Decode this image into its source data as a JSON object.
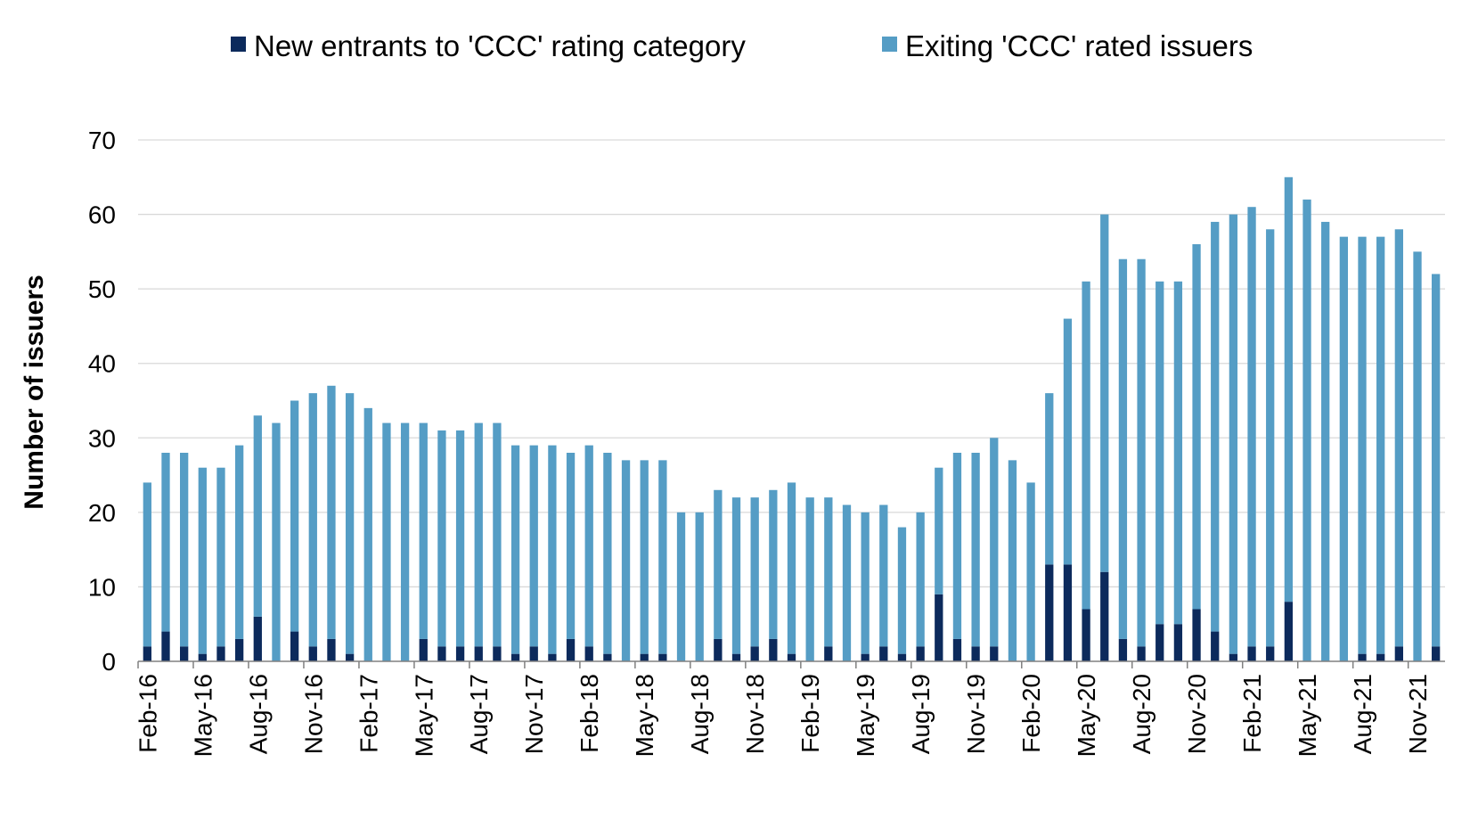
{
  "chart_data": {
    "type": "bar",
    "stacked": true,
    "title": "",
    "xlabel": "",
    "ylabel": "Number of issuers",
    "ylim": [
      0,
      70
    ],
    "yticks": [
      0,
      10,
      20,
      30,
      40,
      50,
      60,
      70
    ],
    "grid": "horizontal",
    "legend_position": "top",
    "categories": [
      "Feb-16",
      "Mar-16",
      "Apr-16",
      "May-16",
      "Jun-16",
      "Jul-16",
      "Aug-16",
      "Sep-16",
      "Oct-16",
      "Nov-16",
      "Dec-16",
      "Jan-17",
      "Feb-17",
      "Mar-17",
      "Apr-17",
      "May-17",
      "Jun-17",
      "Jul-17",
      "Aug-17",
      "Sep-17",
      "Oct-17",
      "Nov-17",
      "Dec-17",
      "Jan-18",
      "Feb-18",
      "Mar-18",
      "Apr-18",
      "May-18",
      "Jun-18",
      "Jul-18",
      "Aug-18",
      "Sep-18",
      "Oct-18",
      "Nov-18",
      "Dec-18",
      "Jan-19",
      "Feb-19",
      "Mar-19",
      "Apr-19",
      "May-19",
      "Jun-19",
      "Jul-19",
      "Aug-19",
      "Sep-19",
      "Oct-19",
      "Nov-19",
      "Dec-19",
      "Jan-20",
      "Feb-20",
      "Mar-20",
      "Apr-20",
      "May-20",
      "Jun-20",
      "Jul-20",
      "Aug-20",
      "Sep-20",
      "Oct-20",
      "Nov-20",
      "Dec-20",
      "Jan-21",
      "Feb-21",
      "Mar-21",
      "Apr-21",
      "May-21",
      "Jun-21",
      "Jul-21",
      "Aug-21",
      "Sep-21",
      "Oct-21",
      "Nov-21",
      "Dec-21"
    ],
    "tick_labels": [
      "Feb-16",
      "May-16",
      "Aug-16",
      "Nov-16",
      "Feb-17",
      "May-17",
      "Aug-17",
      "Nov-17",
      "Feb-18",
      "May-18",
      "Aug-18",
      "Nov-18",
      "Feb-19",
      "May-19",
      "Aug-19",
      "Nov-19",
      "Feb-20",
      "May-20",
      "Aug-20",
      "Nov-20",
      "Feb-21",
      "May-21",
      "Aug-21",
      "Nov-21"
    ],
    "series": [
      {
        "name": "New entrants to 'CCC' rating category",
        "color": "#0c2a5c",
        "values": [
          2,
          4,
          2,
          1,
          2,
          3,
          6,
          0,
          4,
          2,
          3,
          1,
          0,
          0,
          0,
          3,
          2,
          2,
          2,
          2,
          1,
          2,
          1,
          3,
          2,
          1,
          0,
          1,
          1,
          0,
          0,
          3,
          1,
          2,
          3,
          1,
          0,
          2,
          0,
          1,
          2,
          1,
          2,
          9,
          3,
          2,
          2,
          0,
          0,
          13,
          13,
          7,
          12,
          3,
          2,
          5,
          5,
          7,
          4,
          1,
          2,
          2,
          8,
          0,
          0,
          0,
          1,
          1,
          2,
          0,
          2
        ]
      },
      {
        "name": "Exiting 'CCC' rated issuers",
        "color": "#559dc5",
        "values": [
          22,
          24,
          26,
          25,
          24,
          26,
          27,
          32,
          31,
          34,
          34,
          35,
          34,
          32,
          32,
          29,
          29,
          29,
          30,
          30,
          28,
          27,
          28,
          25,
          27,
          27,
          27,
          26,
          26,
          20,
          20,
          20,
          21,
          20,
          20,
          23,
          22,
          20,
          21,
          19,
          19,
          17,
          18,
          17,
          25,
          26,
          28,
          27,
          24,
          23,
          33,
          44,
          48,
          51,
          52,
          46,
          46,
          49,
          55,
          59,
          59,
          56,
          57,
          62,
          59,
          57,
          56,
          56,
          56,
          55,
          50
        ]
      }
    ]
  }
}
